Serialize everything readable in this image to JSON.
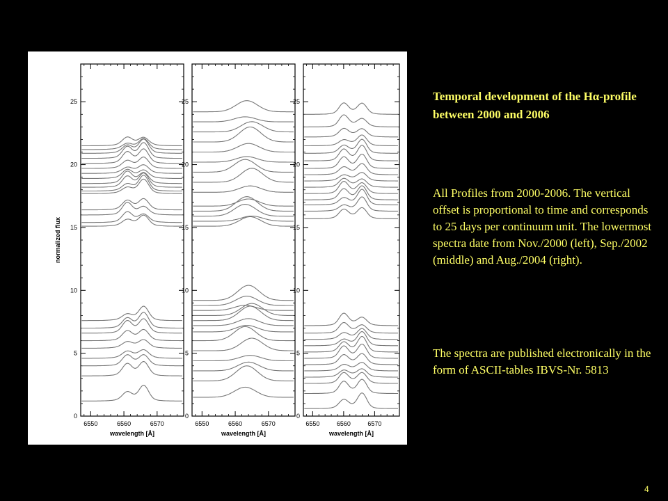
{
  "slide": {
    "title": "Temporal development of the Hα-profile between 2000 and 2006",
    "description": "All Profiles from 2000-2006. The vertical offset is proportional to time and corresponds to 25 days per continuum unit. The lowermost spectra date from Nov./2000 (left), Sep./2002 (middle) and Aug./2004 (right).",
    "publication": "The spectra are published electronically in the form of ASCII-tables IBVS-Nr. 5813",
    "slide_number": "4",
    "colors": {
      "background": "#000000",
      "text": "#ffff66",
      "plot_background": "#ffffff",
      "curve": "#777777"
    }
  },
  "chart_data": [
    {
      "type": "line",
      "panel": "left",
      "xlabel": "wavelength [Å]",
      "ylabel": "normalized flux",
      "xlim": [
        6547,
        6578
      ],
      "ylim": [
        0,
        28
      ],
      "xticks": [
        6550,
        6560,
        6570
      ],
      "yticks": [
        0,
        5,
        10,
        15,
        20,
        25
      ],
      "series_offsets": [
        1.2,
        3.2,
        4.0,
        4.6,
        5.4,
        6.0,
        6.6,
        7.0,
        7.6,
        15.1,
        15.4,
        16.0,
        16.4,
        17.7,
        17.9,
        18.2,
        18.5,
        18.9,
        19.3,
        19.7,
        20.1,
        20.5,
        20.9,
        21.2,
        21.5
      ],
      "profile_peaks": {
        "blue_peak_nm": 6561,
        "red_peak_nm": 6566
      }
    },
    {
      "type": "line",
      "panel": "middle",
      "xlabel": "wavelength [Å]",
      "ylabel": "",
      "xlim": [
        6547,
        6578
      ],
      "ylim": [
        0,
        28
      ],
      "xticks": [
        6550,
        6560,
        6570
      ],
      "yticks": [
        0,
        5,
        10,
        15,
        20,
        25
      ],
      "series_offsets": [
        1.5,
        2.8,
        3.6,
        4.4,
        5.2,
        6.0,
        6.7,
        7.2,
        7.6,
        8.0,
        8.4,
        8.8,
        9.2,
        15.1,
        15.5,
        15.9,
        16.3,
        16.7,
        17.8,
        18.6,
        19.4,
        20.2,
        21.0,
        21.8,
        22.6,
        23.4,
        24.2
      ],
      "profile_peaks": {
        "single_peak_nm": 6563
      }
    },
    {
      "type": "line",
      "panel": "right",
      "xlabel": "wavelength [Å]",
      "ylabel": "",
      "xlim": [
        6547,
        6578
      ],
      "ylim": [
        0,
        28
      ],
      "xticks": [
        6550,
        6560,
        6570
      ],
      "yticks": [
        0,
        5,
        10,
        15,
        20,
        25
      ],
      "series_offsets": [
        0.6,
        1.8,
        2.6,
        3.1,
        3.6,
        4.1,
        4.6,
        5.1,
        5.6,
        6.1,
        6.6,
        7.2,
        15.7,
        16.3,
        16.8,
        17.2,
        17.7,
        18.2,
        18.7,
        19.2,
        19.7,
        20.3,
        20.9,
        21.5,
        22.2,
        23.0,
        24.0
      ],
      "profile_peaks": {
        "blue_peak_nm": 6560,
        "red_peak_nm": 6566
      }
    }
  ]
}
